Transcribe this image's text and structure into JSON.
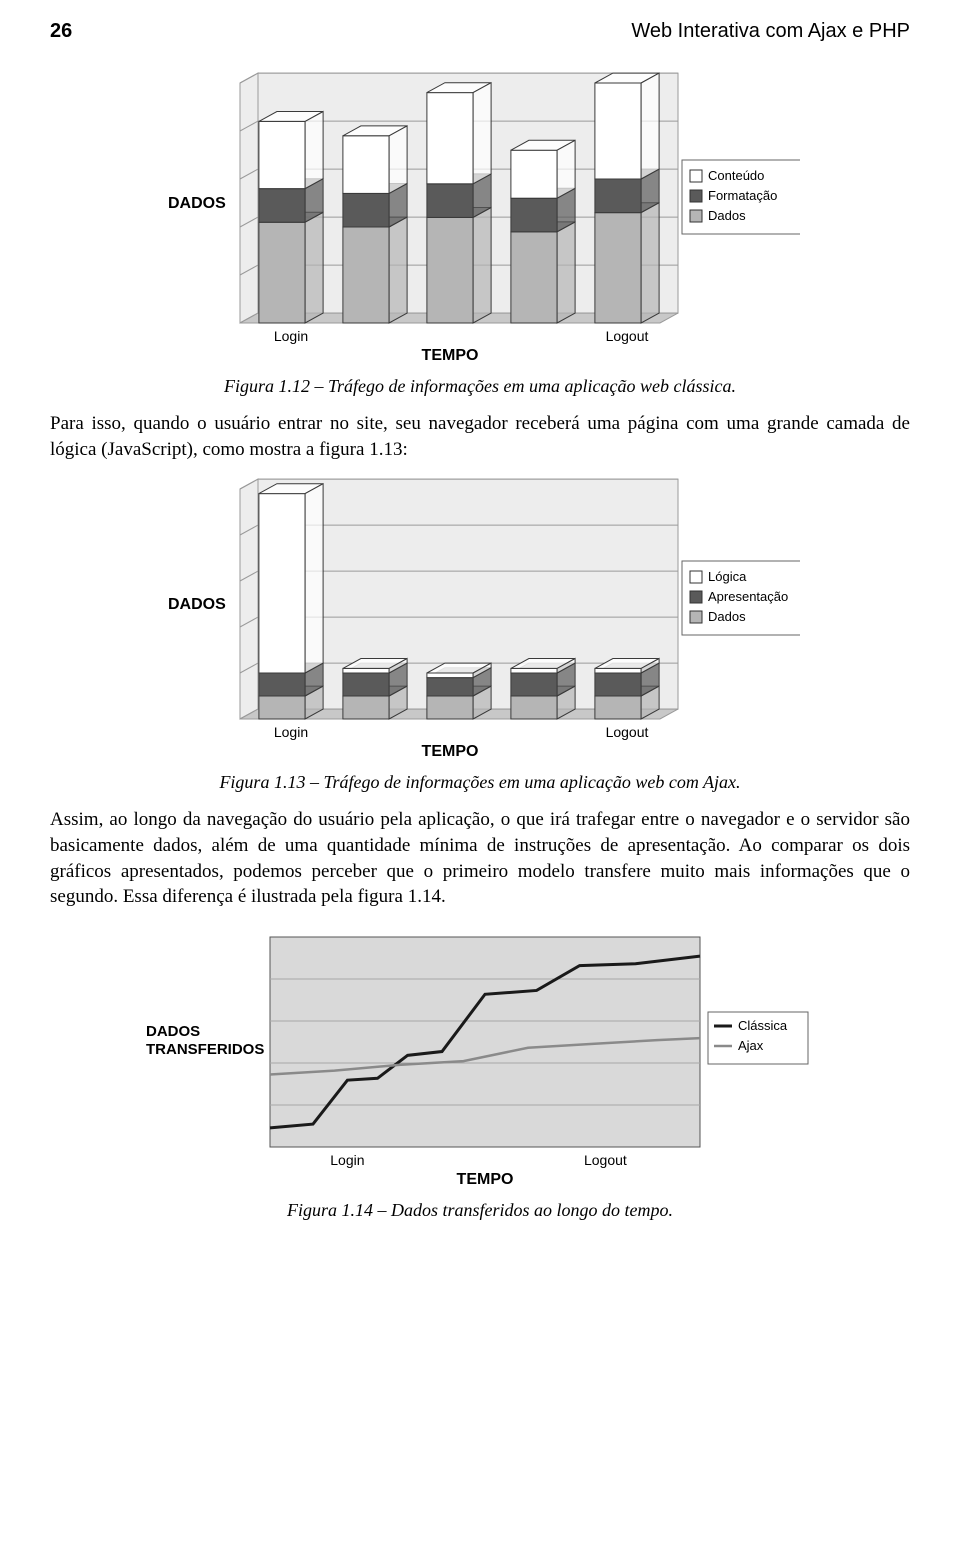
{
  "header": {
    "page_number": "26",
    "book_title": "Web Interativa com Ajax e PHP"
  },
  "chart1": {
    "type": "stacked-bar-3d",
    "y_label": "DADOS",
    "x_label": "TEMPO",
    "categories": [
      "Login",
      "",
      "",
      "",
      "Logout"
    ],
    "series": [
      {
        "name": "Dados",
        "color": "#b5b5b5",
        "values": [
          42,
          40,
          44,
          38,
          46
        ]
      },
      {
        "name": "Formatação",
        "color": "#5a5a5a",
        "values": [
          14,
          14,
          14,
          14,
          14
        ]
      },
      {
        "name": "Conteúdo",
        "color": "#ffffff",
        "values": [
          28,
          24,
          38,
          20,
          40
        ]
      }
    ],
    "legend_items": [
      "Conteúdo",
      "Formatação",
      "Dados"
    ],
    "legend_colors": [
      "#ffffff",
      "#5a5a5a",
      "#b5b5b5"
    ],
    "floor_color": "#c8c8c8",
    "back_wall_color": "#ededed",
    "grid_color": "#9a9a9a",
    "border_color": "#000000",
    "ylim": [
      0,
      100
    ],
    "caption": "Figura 1.12 – Tráfego de informações em uma aplicação web clássica."
  },
  "para1": "Para isso, quando o usuário entrar no site, seu navegador receberá uma página com uma grande camada de lógica (JavaScript), como mostra a figura 1.13:",
  "chart2": {
    "type": "stacked-bar-3d",
    "y_label": "DADOS",
    "x_label": "TEMPO",
    "categories": [
      "Login",
      "",
      "",
      "",
      "Logout"
    ],
    "series": [
      {
        "name": "Dados",
        "color": "#b5b5b5",
        "values": [
          10,
          10,
          10,
          10,
          10
        ]
      },
      {
        "name": "Apresentação",
        "color": "#5a5a5a",
        "values": [
          10,
          10,
          8,
          10,
          10
        ]
      },
      {
        "name": "Lógica",
        "color": "#ffffff",
        "values": [
          78,
          2,
          2,
          2,
          2
        ]
      }
    ],
    "legend_items": [
      "Lógica",
      "Apresentação",
      "Dados"
    ],
    "legend_colors": [
      "#ffffff",
      "#5a5a5a",
      "#b5b5b5"
    ],
    "floor_color": "#c8c8c8",
    "back_wall_color": "#ededed",
    "grid_color": "#9a9a9a",
    "border_color": "#000000",
    "ylim": [
      0,
      100
    ],
    "caption": "Figura 1.13 – Tráfego de informações em uma aplicação web com Ajax."
  },
  "para2": "Assim, ao longo da navegação do usuário pela aplicação, o que irá trafegar entre o navegador e o servidor são basicamente dados, além de uma quantidade mínima de instruções de apresentação. Ao comparar os dois gráficos apresentados, podemos perceber que o primeiro modelo transfere muito mais informações que o segundo. Essa diferença é ilustrada pela figura 1.14.",
  "chart3": {
    "type": "line",
    "y_label": "DADOS TRANSFERIDOS",
    "x_label": "TEMPO",
    "x_ticks": [
      "Login",
      "Logout"
    ],
    "background_color": "#d9d9d9",
    "grid_color": "#a8a8a8",
    "border_color": "#000000",
    "legend_items": [
      "Clássica",
      "Ajax"
    ],
    "series": [
      {
        "name": "Clássica",
        "color": "#1a1a1a",
        "width": 3,
        "points": [
          [
            0,
            10
          ],
          [
            10,
            12
          ],
          [
            18,
            35
          ],
          [
            25,
            36
          ],
          [
            32,
            48
          ],
          [
            40,
            50
          ],
          [
            50,
            80
          ],
          [
            62,
            82
          ],
          [
            72,
            95
          ],
          [
            85,
            96
          ],
          [
            100,
            100
          ]
        ]
      },
      {
        "name": "Ajax",
        "color": "#8a8a8a",
        "width": 2.5,
        "points": [
          [
            0,
            38
          ],
          [
            15,
            40
          ],
          [
            30,
            43
          ],
          [
            45,
            45
          ],
          [
            60,
            52
          ],
          [
            75,
            54
          ],
          [
            90,
            56
          ],
          [
            100,
            57
          ]
        ]
      }
    ],
    "xlim": [
      0,
      100
    ],
    "ylim": [
      0,
      110
    ],
    "caption": "Figura 1.14 – Dados transferidos ao longo do tempo."
  }
}
